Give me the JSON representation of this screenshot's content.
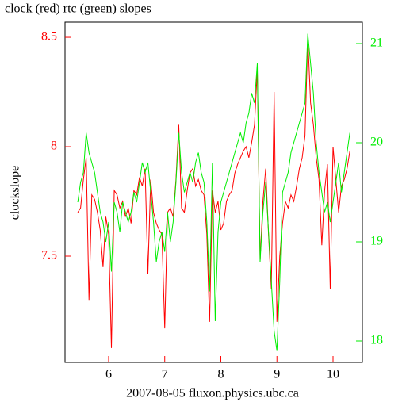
{
  "chart_data": {
    "type": "line",
    "title": "clock (red) rtc (green) slopes",
    "y_label": "clockslope",
    "x_label": "2007-08-05 fluxon.physics.ubc.ca",
    "xlim": [
      5.223,
      10.523
    ],
    "xticks": [
      6,
      7,
      8,
      9,
      10
    ],
    "ylim": [
      7.0145,
      8.569
    ],
    "yticks": [
      7.5,
      8,
      8.5
    ],
    "y2lim": [
      17.784,
      21.216
    ],
    "y2ticks": [
      18,
      19,
      20,
      21
    ],
    "x": [
      5.45,
      5.5,
      5.55,
      5.6,
      5.65,
      5.7,
      5.75,
      5.8,
      5.85,
      5.9,
      5.95,
      6.0,
      6.05,
      6.1,
      6.15,
      6.2,
      6.25,
      6.3,
      6.35,
      6.4,
      6.45,
      6.5,
      6.55,
      6.6,
      6.65,
      6.7,
      6.75,
      6.8,
      6.85,
      6.9,
      6.95,
      7.0,
      7.05,
      7.1,
      7.15,
      7.2,
      7.25,
      7.3,
      7.35,
      7.4,
      7.45,
      7.5,
      7.55,
      7.6,
      7.65,
      7.7,
      7.75,
      7.8,
      7.85,
      7.9,
      7.95,
      8.0,
      8.05,
      8.1,
      8.15,
      8.2,
      8.25,
      8.3,
      8.35,
      8.4,
      8.45,
      8.5,
      8.55,
      8.6,
      8.65,
      8.7,
      8.75,
      8.8,
      8.85,
      8.9,
      8.95,
      9.0,
      9.05,
      9.1,
      9.15,
      9.2,
      9.25,
      9.3,
      9.35,
      9.4,
      9.45,
      9.5,
      9.55,
      9.6,
      9.65,
      9.7,
      9.75,
      9.8,
      9.85,
      9.9,
      9.95,
      10.0,
      10.05,
      10.1,
      10.15,
      10.2,
      10.25,
      10.3
    ],
    "series": [
      {
        "name": "clock",
        "color": "#ff0000",
        "axis": "y",
        "values": [
          7.7,
          7.72,
          7.85,
          7.95,
          7.3,
          7.78,
          7.76,
          7.7,
          7.62,
          7.45,
          7.68,
          7.6,
          7.08,
          7.8,
          7.78,
          7.72,
          7.75,
          7.68,
          7.72,
          7.65,
          7.8,
          7.78,
          7.86,
          7.82,
          7.9,
          7.42,
          7.85,
          7.7,
          7.65,
          7.62,
          7.6,
          7.17,
          7.7,
          7.72,
          7.68,
          7.85,
          8.1,
          7.72,
          7.7,
          7.8,
          7.88,
          7.9,
          7.82,
          7.85,
          7.8,
          7.78,
          7.6,
          7.2,
          7.8,
          7.7,
          7.75,
          7.62,
          7.65,
          7.75,
          7.78,
          7.8,
          7.88,
          7.92,
          7.95,
          7.98,
          8.0,
          7.95,
          8.02,
          8.1,
          8.35,
          7.48,
          7.75,
          7.9,
          7.6,
          7.35,
          8.25,
          7.2,
          7.5,
          7.65,
          7.75,
          7.72,
          7.78,
          7.75,
          7.82,
          7.9,
          7.95,
          8.05,
          8.5,
          8.2,
          8.1,
          7.95,
          7.85,
          7.55,
          7.8,
          7.92,
          7.35,
          8.0,
          7.85,
          7.7,
          7.82,
          7.85,
          7.9,
          7.98
        ]
      },
      {
        "name": "rtc",
        "color": "#00ee00",
        "axis": "y2",
        "values": [
          19.4,
          19.6,
          19.7,
          20.1,
          19.9,
          19.8,
          19.7,
          19.5,
          19.3,
          19.2,
          19.0,
          19.2,
          18.7,
          19.4,
          19.3,
          19.1,
          19.4,
          19.3,
          19.2,
          19.3,
          19.5,
          19.4,
          19.6,
          19.8,
          19.7,
          19.8,
          19.5,
          19.2,
          18.8,
          19.0,
          19.1,
          18.9,
          19.3,
          19.0,
          19.2,
          19.6,
          20.1,
          19.7,
          19.5,
          19.6,
          19.7,
          19.6,
          19.8,
          19.9,
          19.7,
          19.6,
          19.2,
          18.5,
          19.8,
          18.2,
          19.1,
          19.4,
          19.5,
          19.6,
          19.7,
          19.8,
          19.9,
          20.0,
          20.1,
          20.0,
          20.2,
          20.3,
          20.5,
          20.4,
          20.8,
          18.8,
          19.3,
          19.6,
          19.1,
          18.6,
          18.1,
          17.9,
          18.6,
          19.5,
          19.6,
          19.7,
          19.9,
          20.0,
          20.1,
          20.2,
          20.3,
          20.4,
          21.1,
          20.8,
          20.5,
          20.0,
          19.7,
          19.5,
          19.3,
          19.4,
          19.2,
          19.4,
          19.6,
          19.8,
          19.5,
          19.7,
          19.9,
          20.1
        ]
      }
    ]
  }
}
